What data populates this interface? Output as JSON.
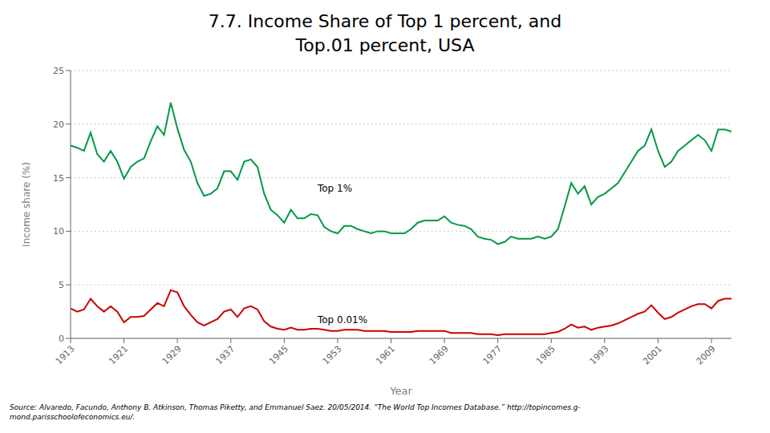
{
  "chart_data": {
    "type": "line",
    "title": "7.7. Income Share of Top 1 percent, and\nTop.01 percent, USA",
    "x_label": "Year",
    "y_label": "Income share (%)",
    "source": "Source: Alvaredo, Facundo, Anthony B. Atkinson, Thomas Piketty, and Emmanuel Saez. 20/05/2014. “The World Top Incomes Database.” http://topincomes.g-\nmond.parisschoolofeconomics.eu/.",
    "xlim": [
      1913,
      2012
    ],
    "ylim": [
      0,
      25
    ],
    "yticks": [
      0,
      5,
      10,
      15,
      20,
      25
    ],
    "xticks": [
      1913,
      1921,
      1929,
      1937,
      1945,
      1953,
      1961,
      1969,
      1977,
      1985,
      1993,
      2001,
      2009
    ],
    "grid": true,
    "x": [
      1913,
      1914,
      1915,
      1916,
      1917,
      1918,
      1919,
      1920,
      1921,
      1922,
      1923,
      1924,
      1925,
      1926,
      1927,
      1928,
      1929,
      1930,
      1931,
      1932,
      1933,
      1934,
      1935,
      1936,
      1937,
      1938,
      1939,
      1940,
      1941,
      1942,
      1943,
      1944,
      1945,
      1946,
      1947,
      1948,
      1949,
      1950,
      1951,
      1952,
      1953,
      1954,
      1955,
      1956,
      1957,
      1958,
      1959,
      1960,
      1961,
      1962,
      1963,
      1964,
      1965,
      1966,
      1967,
      1968,
      1969,
      1970,
      1971,
      1972,
      1973,
      1974,
      1975,
      1976,
      1977,
      1978,
      1979,
      1980,
      1981,
      1982,
      1983,
      1984,
      1985,
      1986,
      1987,
      1988,
      1989,
      1990,
      1991,
      1992,
      1993,
      1994,
      1995,
      1996,
      1997,
      1998,
      1999,
      2000,
      2001,
      2002,
      2003,
      2004,
      2005,
      2006,
      2007,
      2008,
      2009,
      2010,
      2011,
      2012
    ],
    "series": [
      {
        "color": "#009944",
        "values": [
          18.0,
          17.8,
          17.5,
          19.2,
          17.2,
          16.5,
          17.5,
          16.5,
          14.9,
          16.0,
          16.5,
          16.8,
          18.4,
          19.8,
          19.0,
          22.0,
          19.6,
          17.6,
          16.5,
          14.5,
          13.3,
          13.5,
          14.0,
          15.6,
          15.6,
          14.8,
          16.5,
          16.7,
          16.0,
          13.5,
          12.0,
          11.5,
          10.8,
          12.0,
          11.2,
          11.2,
          11.6,
          11.5,
          10.4,
          10.0,
          9.8,
          10.5,
          10.5,
          10.2,
          10.0,
          9.8,
          10.0,
          10.0,
          9.8,
          9.8,
          9.8,
          10.2,
          10.8,
          11.0,
          11.0,
          11.0,
          11.4,
          10.8,
          10.6,
          10.5,
          10.2,
          9.5,
          9.3,
          9.2,
          8.8,
          9.0,
          9.5,
          9.3,
          9.3,
          9.3,
          9.5,
          9.3,
          9.5,
          10.2,
          12.3,
          14.5,
          13.5,
          14.2,
          12.5,
          13.2,
          13.5,
          14.0,
          14.5,
          15.5,
          16.5,
          17.5,
          18.0,
          19.5,
          17.5,
          16.0,
          16.5,
          17.5,
          18.0,
          18.5,
          19.0,
          18.5,
          17.5,
          19.5,
          19.5,
          19.3
        ]
      },
      {
        "color": "#cc0000",
        "values": [
          2.8,
          2.5,
          2.7,
          3.7,
          3.0,
          2.5,
          3.0,
          2.5,
          1.5,
          2.0,
          2.0,
          2.1,
          2.7,
          3.3,
          3.0,
          4.5,
          4.3,
          3.0,
          2.2,
          1.5,
          1.2,
          1.5,
          1.8,
          2.5,
          2.7,
          2.0,
          2.8,
          3.0,
          2.7,
          1.6,
          1.1,
          0.9,
          0.8,
          1.0,
          0.8,
          0.8,
          0.9,
          0.9,
          0.8,
          0.7,
          0.7,
          0.8,
          0.8,
          0.8,
          0.7,
          0.7,
          0.7,
          0.7,
          0.6,
          0.6,
          0.6,
          0.6,
          0.7,
          0.7,
          0.7,
          0.7,
          0.7,
          0.5,
          0.5,
          0.5,
          0.5,
          0.4,
          0.4,
          0.4,
          0.3,
          0.4,
          0.4,
          0.4,
          0.4,
          0.4,
          0.4,
          0.4,
          0.5,
          0.6,
          0.9,
          1.3,
          1.0,
          1.1,
          0.8,
          1.0,
          1.1,
          1.2,
          1.4,
          1.7,
          2.0,
          2.3,
          2.5,
          3.1,
          2.4,
          1.8,
          2.0,
          2.4,
          2.7,
          3.0,
          3.2,
          3.2,
          2.8,
          3.5,
          3.7,
          3.7
        ]
      }
    ],
    "annotations": [
      {
        "text": "Top 1%",
        "x": 1950,
        "y": 13.5
      },
      {
        "text": "Top 0.01%",
        "x": 1950,
        "y": 1.2
      }
    ]
  }
}
